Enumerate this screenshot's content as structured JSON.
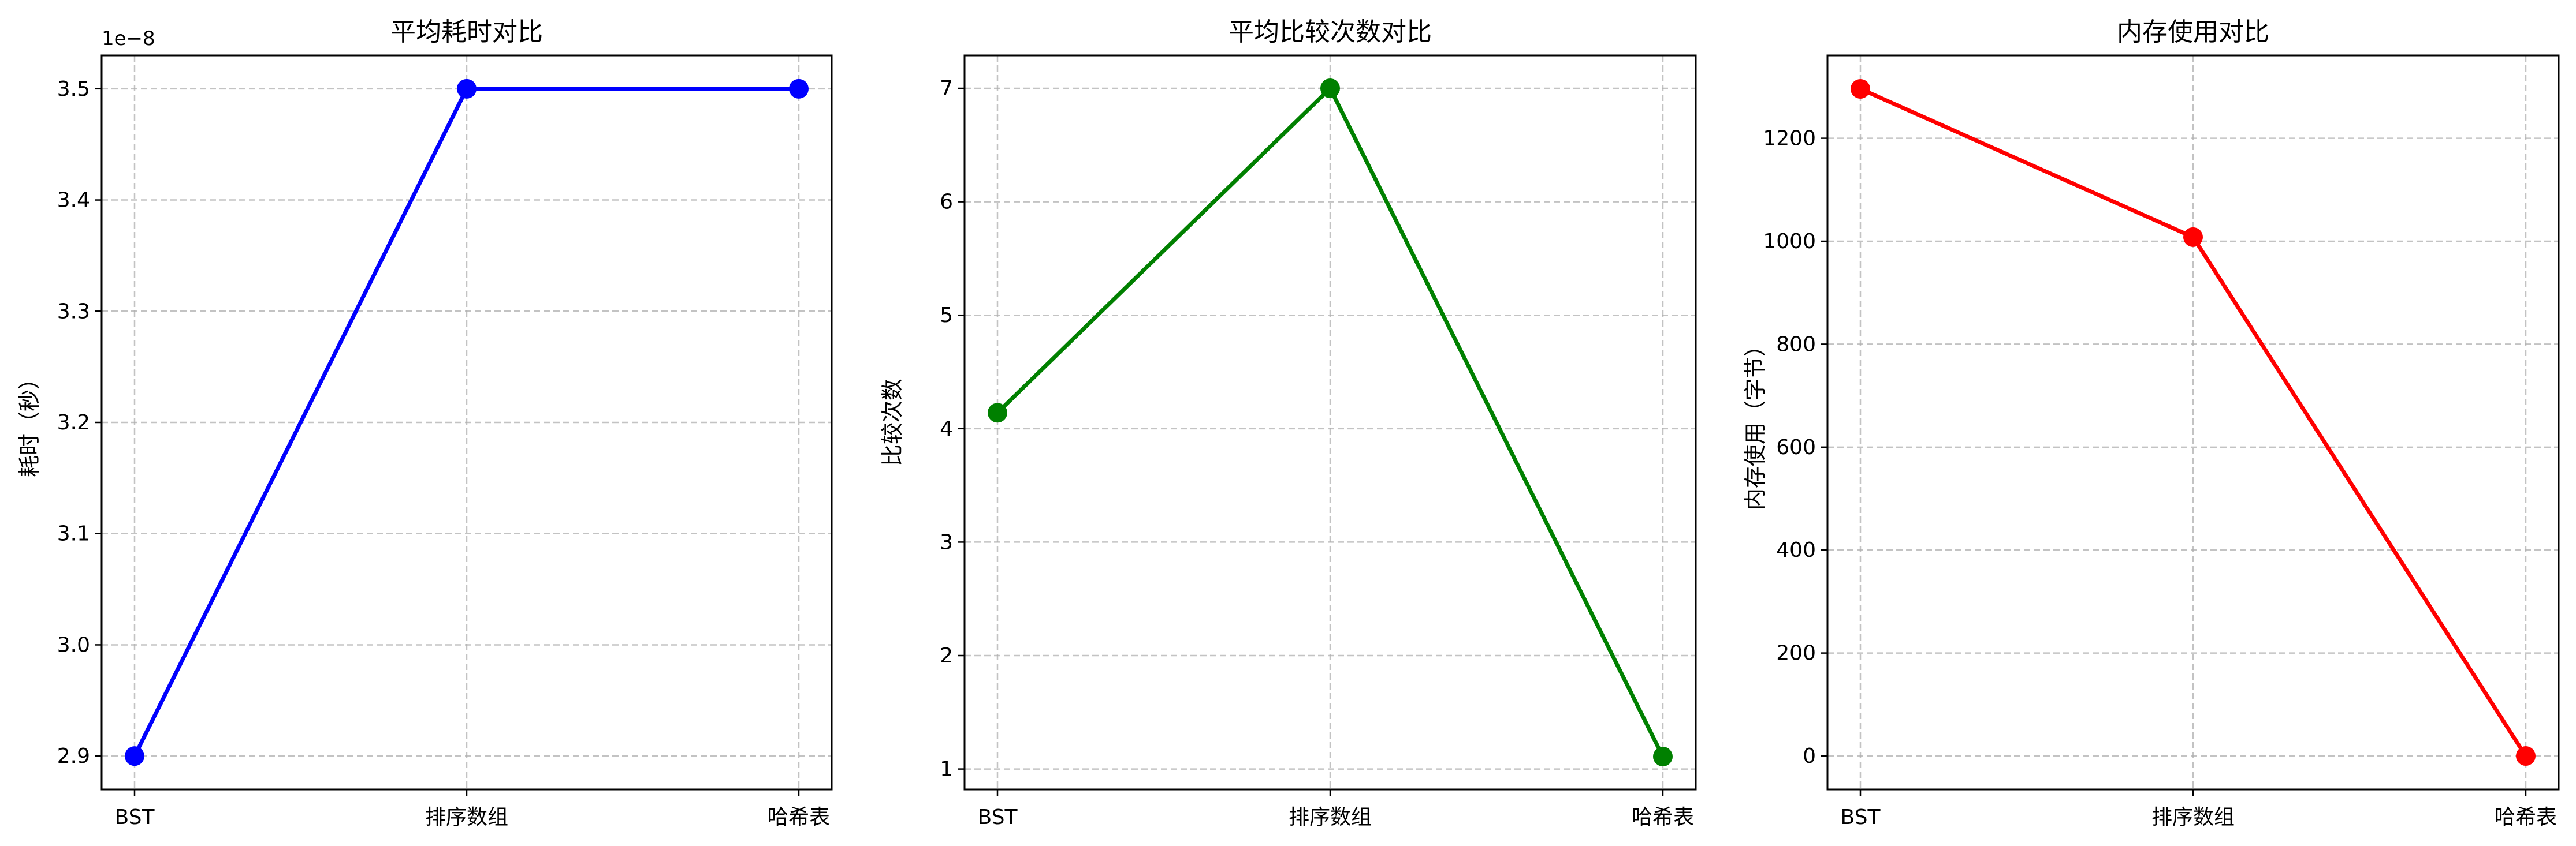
{
  "chart_data": [
    {
      "type": "line",
      "title": "平均耗时对比",
      "xlabel": "",
      "ylabel": "耗时（秒）",
      "offset_text": "1e−8",
      "categories": [
        "BST",
        "排序数组",
        "哈希表"
      ],
      "series": [
        {
          "values": [
            2.9e-08,
            3.5e-08,
            3.5e-08
          ],
          "color": "#0000ff"
        }
      ],
      "ylim": [
        2.87e-08,
        3.53e-08
      ],
      "yticks": [
        2.9e-08,
        3e-08,
        3.1e-08,
        3.2e-08,
        3.3e-08,
        3.4e-08,
        3.5e-08
      ],
      "ytick_labels": [
        "2.9",
        "3.0",
        "3.1",
        "3.2",
        "3.3",
        "3.4",
        "3.5"
      ],
      "grid": true,
      "marker": "circle"
    },
    {
      "type": "line",
      "title": "平均比较次数对比",
      "xlabel": "",
      "ylabel": "比较次数",
      "categories": [
        "BST",
        "排序数组",
        "哈希表"
      ],
      "series": [
        {
          "values": [
            4.14,
            7.0,
            1.11
          ],
          "color": "#008000"
        }
      ],
      "ylim": [
        0.82,
        7.29
      ],
      "yticks": [
        1,
        2,
        3,
        4,
        5,
        6,
        7
      ],
      "ytick_labels": [
        "1",
        "2",
        "3",
        "4",
        "5",
        "6",
        "7"
      ],
      "grid": true,
      "marker": "circle"
    },
    {
      "type": "line",
      "title": "内存使用对比",
      "xlabel": "",
      "ylabel": "内存使用（字节）",
      "categories": [
        "BST",
        "排序数组",
        "哈希表"
      ],
      "series": [
        {
          "values": [
            1296,
            1008,
            0
          ],
          "color": "#ff0000"
        }
      ],
      "ylim": [
        -65,
        1361
      ],
      "yticks": [
        0,
        200,
        400,
        600,
        800,
        1000,
        1200
      ],
      "ytick_labels": [
        "0",
        "200",
        "400",
        "600",
        "800",
        "1000",
        "1200"
      ],
      "grid": true,
      "marker": "circle"
    }
  ]
}
